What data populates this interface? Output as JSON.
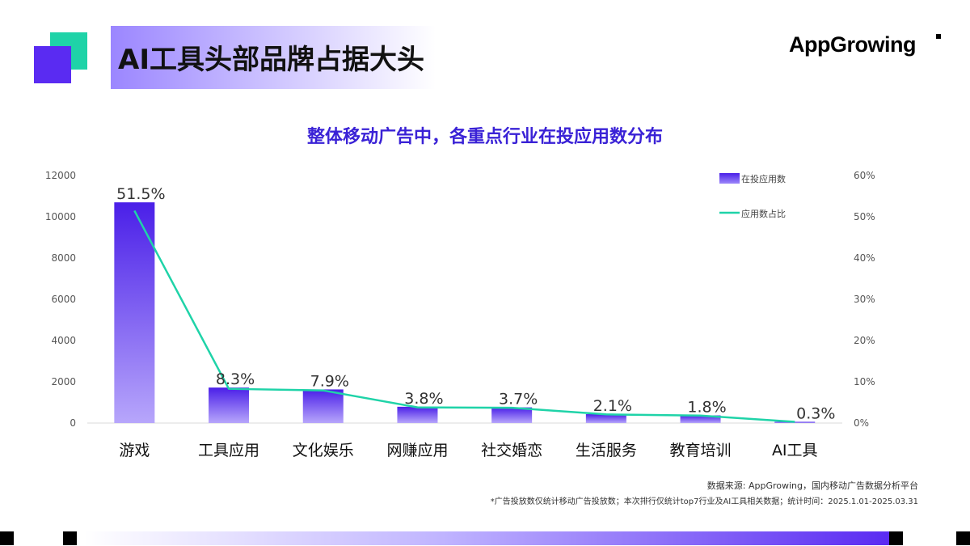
{
  "header": {
    "title": "AI工具头部品牌占据大头",
    "logo_text": "AppGrowing"
  },
  "colors": {
    "accent": "#5a2bf2",
    "line": "#1fd3a8",
    "title": "#3a22d6"
  },
  "chart_data": {
    "type": "bar",
    "title": "整体移动广告中，各重点行业在投应用数分布",
    "categories": [
      "游戏",
      "工具应用",
      "文化娱乐",
      "网赚应用",
      "社交婚恋",
      "生活服务",
      "教育培训",
      "AI工具"
    ],
    "series": [
      {
        "name": "在投应用数",
        "type": "bar",
        "axis": "left",
        "values": [
          10700,
          1720,
          1630,
          790,
          760,
          430,
          370,
          60
        ]
      },
      {
        "name": "应用数占比",
        "type": "line",
        "axis": "right",
        "values": [
          51.5,
          8.3,
          7.9,
          3.8,
          3.7,
          2.1,
          1.8,
          0.3
        ],
        "labels": [
          "51.5%",
          "8.3%",
          "7.9%",
          "3.8%",
          "3.7%",
          "2.1%",
          "1.8%",
          "0.3%"
        ]
      }
    ],
    "y_left": {
      "min": 0,
      "max": 12000,
      "ticks": [
        "0",
        "2000",
        "4000",
        "6000",
        "8000",
        "10000",
        "12000"
      ]
    },
    "y_right": {
      "min": 0,
      "max": 60,
      "ticks": [
        "0%",
        "10%",
        "20%",
        "30%",
        "40%",
        "50%",
        "60%"
      ]
    },
    "legend": "top-right",
    "grid": false
  },
  "footer": {
    "source": "数据来源: AppGrowing，国内移动广告数据分析平台",
    "note": "*广告投放数仅统计移动广告投放数；本次排行仅统计top7行业及AI工具相关数据；统计时间：2025.1.01-2025.03.31"
  }
}
